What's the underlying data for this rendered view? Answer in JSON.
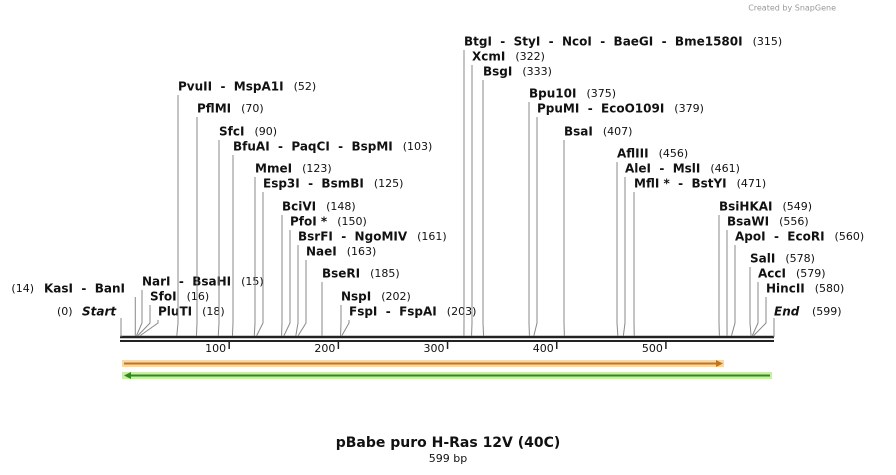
{
  "brand": "Created by SnapGene",
  "title": "pBabe puro H-Ras 12V (40C)",
  "subtitle": "599 bp",
  "length": 599,
  "start": {
    "position_label": "(0)",
    "label": "Start"
  },
  "end": {
    "label": "End",
    "position_label": "(599)"
  },
  "ruler": {
    "ticks": [
      100,
      200,
      300,
      400,
      500
    ]
  },
  "enzymes": [
    {
      "names": "KasI  -  BanI",
      "position": 14,
      "position_label": "(14)"
    },
    {
      "names": "NarI  -  BsaHI",
      "position": 15,
      "position_label": "(15)"
    },
    {
      "names": "SfoI",
      "position": 16,
      "position_label": "(16)"
    },
    {
      "names": "PluTI",
      "position": 18,
      "position_label": "(18)"
    },
    {
      "names": "PvuII  -  MspA1I",
      "position": 52,
      "position_label": "(52)"
    },
    {
      "names": "PflMI",
      "position": 70,
      "position_label": "(70)"
    },
    {
      "names": "SfcI",
      "position": 90,
      "position_label": "(90)"
    },
    {
      "names": "BfuAI  -  PaqCI  -  BspMI",
      "position": 103,
      "position_label": "(103)"
    },
    {
      "names": "MmeI",
      "position": 123,
      "position_label": "(123)"
    },
    {
      "names": "Esp3I  -  BsmBI",
      "position": 125,
      "position_label": "(125)"
    },
    {
      "names": "BciVI",
      "position": 148,
      "position_label": "(148)"
    },
    {
      "names": "PfoI *",
      "position": 150,
      "position_label": "(150)"
    },
    {
      "names": "BsrFI  -  NgoMIV",
      "position": 161,
      "position_label": "(161)"
    },
    {
      "names": "NaeI",
      "position": 163,
      "position_label": "(163)"
    },
    {
      "names": "BseRI",
      "position": 185,
      "position_label": "(185)"
    },
    {
      "names": "NspI",
      "position": 202,
      "position_label": "(202)"
    },
    {
      "names": "FspI  -  FspAI",
      "position": 203,
      "position_label": "(203)"
    },
    {
      "names": "BtgI  -  StyI  -  NcoI  -  BaeGI  -  Bme1580I",
      "position": 315,
      "position_label": "(315)"
    },
    {
      "names": "XcmI",
      "position": 322,
      "position_label": "(322)"
    },
    {
      "names": "BsgI",
      "position": 333,
      "position_label": "(333)"
    },
    {
      "names": "Bpu10I",
      "position": 375,
      "position_label": "(375)"
    },
    {
      "names": "PpuMI  -  EcoO109I",
      "position": 379,
      "position_label": "(379)"
    },
    {
      "names": "BsaI",
      "position": 407,
      "position_label": "(407)"
    },
    {
      "names": "AflIII",
      "position": 456,
      "position_label": "(456)"
    },
    {
      "names": "AleI  -  MslI",
      "position": 461,
      "position_label": "(461)"
    },
    {
      "names": "MflI *  -  BstYI",
      "position": 471,
      "position_label": "(471)"
    },
    {
      "names": "BsiHKAI",
      "position": 549,
      "position_label": "(549)"
    },
    {
      "names": "BsaWI",
      "position": 556,
      "position_label": "(556)"
    },
    {
      "names": "ApoI  -  EcoRI",
      "position": 560,
      "position_label": "(560)"
    },
    {
      "names": "SalI",
      "position": 578,
      "position_label": "(578)"
    },
    {
      "names": "AccI",
      "position": 579,
      "position_label": "(579)"
    },
    {
      "names": "HincII",
      "position": 580,
      "position_label": "(580)"
    }
  ]
}
